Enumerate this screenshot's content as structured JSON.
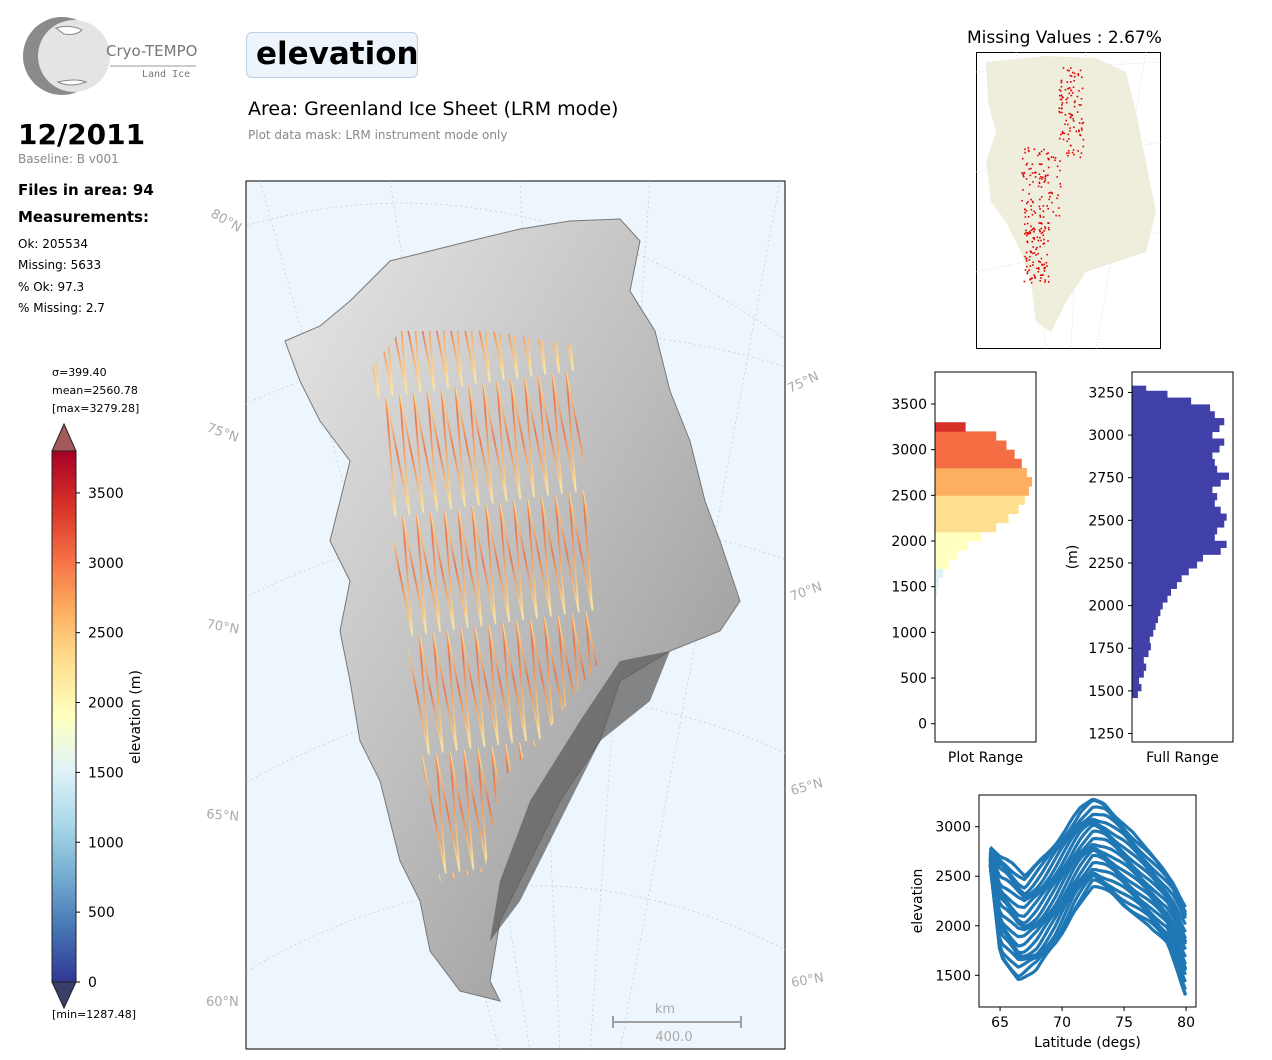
{
  "logo": {
    "name": "Cryo-TEMPO",
    "subtitle": "Land Ice"
  },
  "date": "12/2011",
  "baseline": "Baseline: B v001",
  "files_in_area": "Files in area: 94",
  "measurements_heading": "Measurements:",
  "measurements": {
    "ok": "Ok: 205534",
    "missing": "Missing: 5633",
    "pct_ok": "% Ok: 97.3",
    "pct_missing": "% Missing: 2.7"
  },
  "title": "elevation",
  "area": "Area: Greenland Ice Sheet (LRM mode)",
  "mask_note": "Plot data mask: LRM instrument mode only",
  "colorbar": {
    "stats": {
      "sigma": "σ=399.40",
      "mean": "mean=2560.78",
      "max": "[max=3279.28]",
      "min": "[min=1287.48]"
    },
    "label": "elevation (m)",
    "ticks": [
      "0",
      "500",
      "1000",
      "1500",
      "2000",
      "2500",
      "3000",
      "3500"
    ],
    "range": [
      0,
      3800
    ],
    "colors": [
      "#313695",
      "#4575b4",
      "#74add1",
      "#abd9e9",
      "#e0f3f8",
      "#ffffbf",
      "#fee090",
      "#fdae61",
      "#f46d43",
      "#d73027",
      "#a50026"
    ]
  },
  "map": {
    "lat_labels_left": [
      "80°N",
      "75°N",
      "70°N",
      "65°N",
      "60°N"
    ],
    "lat_labels_right": [
      "75°N",
      "70°N",
      "65°N",
      "60°N"
    ],
    "scalebar": {
      "unit": "km",
      "value": "400.0"
    },
    "ocean_color": "#eef6fd"
  },
  "missing_map": {
    "title": "Missing Values : 2.67%",
    "land_color": "#efeedd",
    "point_color": "#dd0000"
  },
  "chart_data": [
    {
      "type": "bar",
      "orientation": "horizontal",
      "xlabel": "Plot Range",
      "ylabel": "",
      "ylim": [
        -200,
        3850
      ],
      "yticks": [
        0,
        500,
        1000,
        1500,
        2000,
        2500,
        3000,
        3500
      ],
      "bins": [
        1450,
        1550,
        1650,
        1750,
        1850,
        1950,
        2050,
        2150,
        2250,
        2350,
        2450,
        2550,
        2650,
        2750,
        2850,
        2950,
        3050,
        3150,
        3250
      ],
      "counts": [
        2,
        4,
        8,
        14,
        22,
        32,
        45,
        60,
        72,
        82,
        88,
        92,
        95,
        90,
        85,
        78,
        70,
        60,
        30
      ]
    },
    {
      "type": "bar",
      "orientation": "horizontal",
      "xlabel": "Full Range",
      "ylabel": "(m)",
      "ylim": [
        1200,
        3370
      ],
      "yticks": [
        1250,
        1500,
        1750,
        2000,
        2250,
        2500,
        2750,
        3000,
        3250
      ],
      "bins": [
        1480,
        1520,
        1560,
        1600,
        1640,
        1680,
        1720,
        1760,
        1800,
        1840,
        1880,
        1920,
        1960,
        2000,
        2040,
        2080,
        2120,
        2160,
        2200,
        2240,
        2280,
        2320,
        2360,
        2400,
        2440,
        2480,
        2520,
        2560,
        2600,
        2640,
        2680,
        2720,
        2760,
        2800,
        2840,
        2880,
        2920,
        2960,
        3000,
        3040,
        3080,
        3120,
        3160,
        3200,
        3240,
        3270
      ],
      "counts": [
        5,
        8,
        6,
        10,
        12,
        10,
        14,
        16,
        15,
        18,
        20,
        22,
        24,
        26,
        30,
        33,
        38,
        42,
        48,
        55,
        60,
        75,
        80,
        70,
        72,
        78,
        80,
        75,
        70,
        72,
        68,
        75,
        82,
        72,
        70,
        68,
        74,
        78,
        68,
        74,
        78,
        70,
        66,
        50,
        30,
        12
      ]
    },
    {
      "type": "scatter",
      "xlabel": "Latitude (degs)",
      "ylabel": "elevation",
      "xlim": [
        63.3,
        80.8
      ],
      "ylim": [
        1180,
        3320
      ],
      "xticks": [
        65,
        70,
        75,
        80
      ],
      "yticks": [
        1500,
        2000,
        2500,
        3000
      ],
      "color": "#1f77b4",
      "envelope_upper": [
        [
          64.2,
          2800
        ],
        [
          65.5,
          2700
        ],
        [
          67,
          2500
        ],
        [
          68.5,
          2700
        ],
        [
          70,
          2950
        ],
        [
          71.5,
          3200
        ],
        [
          72.5,
          3280
        ],
        [
          73.5,
          3230
        ],
        [
          75,
          3050
        ],
        [
          77,
          2750
        ],
        [
          79,
          2450
        ],
        [
          80,
          2200
        ]
      ],
      "envelope_lower": [
        [
          64.2,
          2600
        ],
        [
          65,
          1700
        ],
        [
          66.5,
          1450
        ],
        [
          68,
          1550
        ],
        [
          69.5,
          1800
        ],
        [
          71,
          2150
        ],
        [
          72.5,
          2400
        ],
        [
          74,
          2300
        ],
        [
          75.5,
          2150
        ],
        [
          77,
          2000
        ],
        [
          78.5,
          1800
        ],
        [
          80,
          1280
        ]
      ]
    }
  ]
}
